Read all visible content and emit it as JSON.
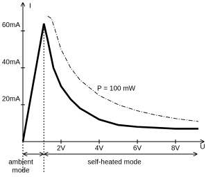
{
  "chart_data": {
    "type": "line",
    "x_label": "U",
    "y_label": "I",
    "xlim": [
      0,
      9.2
    ],
    "ylim": [
      0,
      73
    ],
    "xticks": [
      {
        "value": 2,
        "label": "2V"
      },
      {
        "value": 4,
        "label": "4V"
      },
      {
        "value": 6,
        "label": "6V"
      },
      {
        "value": 8,
        "label": "8V"
      }
    ],
    "yticks": [
      {
        "value": 20,
        "label": "20mA"
      },
      {
        "value": 40,
        "label": "40mA"
      },
      {
        "value": 60,
        "label": "60mA"
      }
    ],
    "series": [
      {
        "color": "#000000",
        "style": "solid",
        "x": [
          0,
          1.1,
          1.3,
          1.6,
          2,
          2.5,
          3,
          4,
          5,
          6,
          7,
          8,
          9.2
        ],
        "values": [
          0,
          64,
          55,
          40,
          30,
          23,
          18,
          12,
          9,
          8,
          7.5,
          7,
          7
        ]
      },
      {
        "color": "#000000",
        "style": "dashed",
        "x": [
          1.3,
          1.5,
          2,
          2.5,
          3,
          4,
          5,
          6,
          7,
          8,
          9.2
        ],
        "values": [
          68,
          66.7,
          50,
          40,
          33.3,
          25,
          20,
          16.7,
          14.3,
          12.5,
          10.9
        ]
      }
    ],
    "annotations": [
      "P = 100 mW",
      "ambient",
      "mode",
      "self-heated mode"
    ]
  }
}
